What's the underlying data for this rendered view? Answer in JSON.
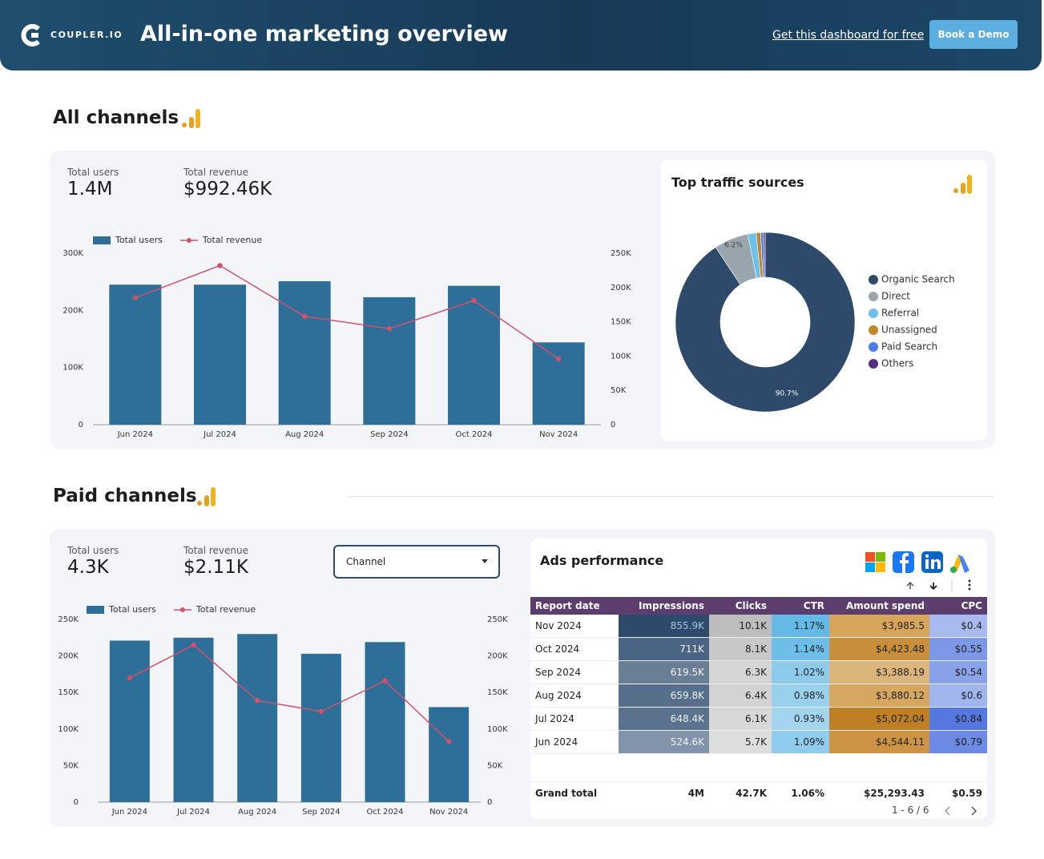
{
  "header": {
    "logo": "COUPLER.IO",
    "title": "All-in-one marketing overview",
    "link": "Get this dashboard for free",
    "button": "Book a Demo"
  },
  "sections": [
    {
      "title": "All channels",
      "kpis": [
        {
          "label": "Total users",
          "value": "1.4M"
        },
        {
          "label": "Total revenue",
          "value": "$992.46K"
        }
      ]
    },
    {
      "title": "Paid channels",
      "kpis": [
        {
          "label": "Total users",
          "value": "4.3K"
        },
        {
          "label": "Total revenue",
          "value": "$2.11K"
        }
      ],
      "dropdown": "Channel"
    }
  ],
  "chart_data": [
    {
      "type": "bar",
      "categories": [
        "Jun 2024",
        "Jul 2024",
        "Aug 2024",
        "Sep 2024",
        "Oct 2024",
        "Nov 2024"
      ],
      "series": [
        {
          "name": "Total users",
          "type": "bar",
          "color": "#2e6f9a",
          "values": [
            245000,
            245000,
            251000,
            223000,
            243000,
            144000
          ]
        },
        {
          "name": "Total revenue",
          "type": "line",
          "axis": "y2",
          "color": "#d0526a",
          "values": [
            185000,
            232000,
            158000,
            140000,
            181000,
            96000
          ]
        }
      ],
      "ylim": [
        0,
        300000
      ],
      "yticks": [
        0,
        {
          "value": 100000,
          "label": "100K"
        },
        {
          "value": 200000,
          "label": "200K"
        },
        {
          "value": 300000,
          "label": "300K"
        }
      ],
      "y2lim": [
        0,
        250000
      ],
      "y2ticks": [
        0,
        {
          "value": 50000,
          "label": "50K"
        },
        {
          "value": 100000,
          "label": "100K"
        },
        {
          "value": 150000,
          "label": "150K"
        },
        {
          "value": 200000,
          "label": "200K"
        },
        {
          "value": 250000,
          "label": "250K"
        }
      ],
      "grid": false
    },
    {
      "type": "pie",
      "title": "Top traffic sources",
      "categories": [
        "Organic Search",
        "Direct",
        "Referral",
        "Unassigned",
        "Paid Search",
        "Others"
      ],
      "values": [
        90.7,
        6.2,
        1.5,
        0.8,
        0.5,
        0.3
      ],
      "value_labels": [
        "90.7%",
        "6.2%",
        null,
        null,
        null,
        null
      ],
      "colors": [
        "#2d4a6b",
        "#9aa5ae",
        "#6cc0ea",
        "#c0872a",
        "#4f7ce8",
        "#5b2d82"
      ]
    },
    {
      "type": "bar",
      "categories": [
        "Jun 2024",
        "Jul 2024",
        "Aug 2024",
        "Sep 2024",
        "Oct 2024",
        "Nov 2024"
      ],
      "series": [
        {
          "name": "Total users",
          "type": "bar",
          "color": "#2e6f9a",
          "values": [
            221000,
            225000,
            230000,
            203000,
            219000,
            130000
          ]
        },
        {
          "name": "Total revenue",
          "type": "line",
          "axis": "y2",
          "color": "#d0526a",
          "values": [
            170000,
            215000,
            139000,
            124000,
            166000,
            83000
          ]
        }
      ],
      "ylim": [
        0,
        250000
      ],
      "yticks": [
        0,
        {
          "value": 50000,
          "label": "50K"
        },
        {
          "value": 100000,
          "label": "100K"
        },
        {
          "value": 150000,
          "label": "150K"
        },
        {
          "value": 200000,
          "label": "200K"
        },
        {
          "value": 250000,
          "label": "250K"
        }
      ],
      "y2lim": [
        0,
        250000
      ],
      "y2ticks": [
        0,
        {
          "value": 50000,
          "label": "50K"
        },
        {
          "value": 100000,
          "label": "100K"
        },
        {
          "value": 150000,
          "label": "150K"
        },
        {
          "value": 200000,
          "label": "200K"
        },
        {
          "value": 250000,
          "label": "250K"
        }
      ],
      "grid": false
    }
  ],
  "ads_table": {
    "title": "Ads performance",
    "columns": [
      "Report date",
      "Impressions",
      "Clicks",
      "CTR",
      "Amount spend",
      "CPC"
    ],
    "rows": [
      [
        "Nov 2024",
        "855.9K",
        "10.1K",
        "1.17%",
        "$3,985.5",
        "$0.4"
      ],
      [
        "Oct 2024",
        "711K",
        "8.1K",
        "1.14%",
        "$4,423.48",
        "$0.55"
      ],
      [
        "Sep 2024",
        "619.5K",
        "6.3K",
        "1.02%",
        "$3,388.19",
        "$0.54"
      ],
      [
        "Aug 2024",
        "659.8K",
        "6.4K",
        "0.98%",
        "$3,880.12",
        "$0.6"
      ],
      [
        "Jul 2024",
        "648.4K",
        "6.1K",
        "0.93%",
        "$5,072.04",
        "$0.84"
      ],
      [
        "Jun 2024",
        "524.6K",
        "5.7K",
        "1.09%",
        "$4,544.11",
        "$0.79"
      ]
    ],
    "total": [
      "Grand total",
      "4M",
      "42.7K",
      "1.06%",
      "$25,293.43",
      "$0.59"
    ],
    "pagination": "1 - 6 / 6"
  }
}
